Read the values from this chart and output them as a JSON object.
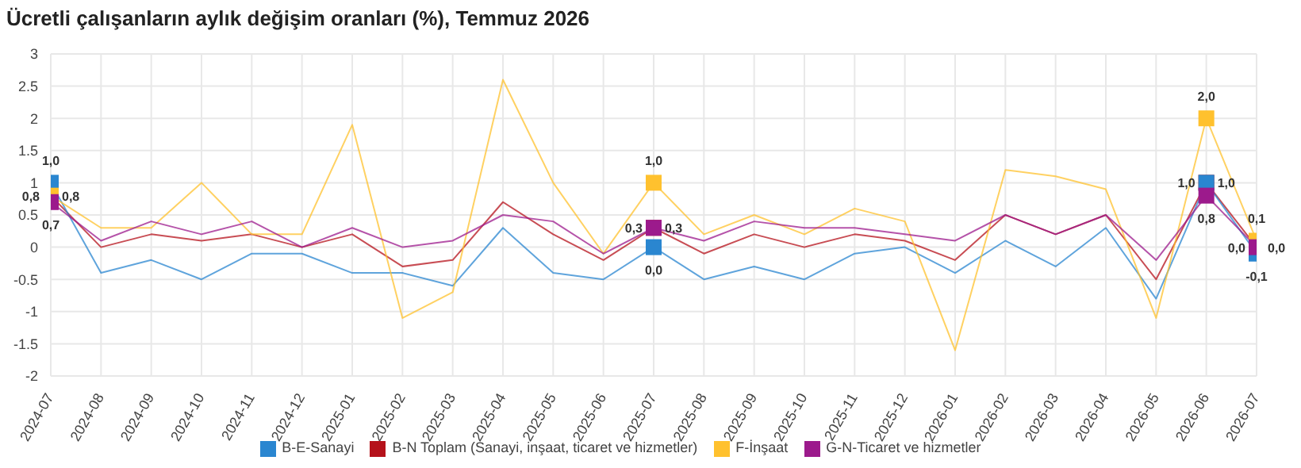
{
  "chart_data": {
    "type": "line",
    "title": "Ücretli çalışanların aylık değişim oranları (%), Temmuz 2026",
    "categories": [
      "2024-07",
      "2024-08",
      "2024-09",
      "2024-10",
      "2024-11",
      "2024-12",
      "2025-01",
      "2025-02",
      "2025-03",
      "2025-04",
      "2025-05",
      "2025-06",
      "2025-07",
      "2025-08",
      "2025-09",
      "2025-10",
      "2025-11",
      "2025-12",
      "2026-01",
      "2026-02",
      "2026-03",
      "2026-04",
      "2026-05",
      "2026-06",
      "2026-07"
    ],
    "series": [
      {
        "name": "B-N Toplam (Sanayi, inşaat, ticaret ve hizmetler)",
        "color": "#b5121b",
        "values": [
          0.8,
          0.0,
          0.2,
          0.1,
          0.2,
          0.0,
          0.2,
          -0.3,
          -0.2,
          0.7,
          0.2,
          -0.2,
          0.3,
          -0.1,
          0.2,
          0.0,
          0.2,
          0.1,
          -0.2,
          0.5,
          0.2,
          0.5,
          -0.5,
          1.0,
          0.0
        ],
        "value_labels": [
          "0,8",
          null,
          null,
          null,
          null,
          null,
          null,
          null,
          null,
          null,
          null,
          null,
          "0,3",
          null,
          null,
          null,
          null,
          null,
          null,
          null,
          null,
          null,
          null,
          "1,0",
          "0,0"
        ]
      },
      {
        "name": "B-E-Sanayi",
        "color": "#2a86d0",
        "values": [
          1.0,
          -0.4,
          -0.2,
          -0.5,
          -0.1,
          -0.1,
          -0.4,
          -0.4,
          -0.6,
          0.3,
          -0.4,
          -0.5,
          0.0,
          -0.5,
          -0.3,
          -0.5,
          -0.1,
          0.0,
          -0.4,
          0.1,
          -0.3,
          0.3,
          -0.8,
          1.0,
          -0.1
        ],
        "value_labels": [
          "1,0",
          null,
          null,
          null,
          null,
          null,
          null,
          null,
          null,
          null,
          null,
          null,
          "0,0",
          null,
          null,
          null,
          null,
          null,
          null,
          null,
          null,
          null,
          null,
          "1,0",
          "-0,1"
        ]
      },
      {
        "name": "F-İnşaat",
        "color": "#ffc12e",
        "values": [
          0.8,
          0.3,
          0.3,
          1.0,
          0.2,
          0.2,
          1.9,
          -1.1,
          -0.7,
          2.6,
          1.0,
          -0.1,
          1.0,
          0.2,
          0.5,
          0.2,
          0.6,
          0.4,
          -1.6,
          1.2,
          1.1,
          0.9,
          -1.1,
          2.0,
          0.1
        ],
        "value_labels": [
          "0,8",
          null,
          null,
          null,
          null,
          null,
          null,
          null,
          null,
          null,
          null,
          null,
          "1,0",
          null,
          null,
          null,
          null,
          null,
          null,
          null,
          null,
          null,
          null,
          "2,0",
          "0,1"
        ]
      },
      {
        "name": "G-N-Ticaret ve hizmetler",
        "color": "#9c1a8c",
        "values": [
          0.7,
          0.1,
          0.4,
          0.2,
          0.4,
          0.0,
          0.3,
          0.0,
          0.1,
          0.5,
          0.4,
          -0.1,
          0.3,
          0.1,
          0.4,
          0.3,
          0.3,
          0.2,
          0.1,
          0.5,
          0.2,
          0.5,
          -0.2,
          0.8,
          0.0
        ],
        "value_labels": [
          "0,7",
          null,
          null,
          null,
          null,
          null,
          null,
          null,
          null,
          null,
          null,
          null,
          "0,3",
          null,
          null,
          null,
          null,
          null,
          null,
          null,
          null,
          null,
          null,
          "0,8",
          "0,0"
        ]
      }
    ],
    "ylim": [
      -2,
      3
    ],
    "yticks": [
      -2,
      {
        "value": -1.5,
        "label": "-1.5"
      },
      -1,
      {
        "value": -0.5,
        "label": "-0.5"
      },
      0,
      {
        "value": 0.5,
        "label": "0.5"
      },
      1,
      {
        "value": 1.5,
        "label": "1.5"
      },
      2,
      {
        "value": 2.5,
        "label": "2.5"
      },
      3
    ],
    "grid": true,
    "legend": "bottom"
  }
}
